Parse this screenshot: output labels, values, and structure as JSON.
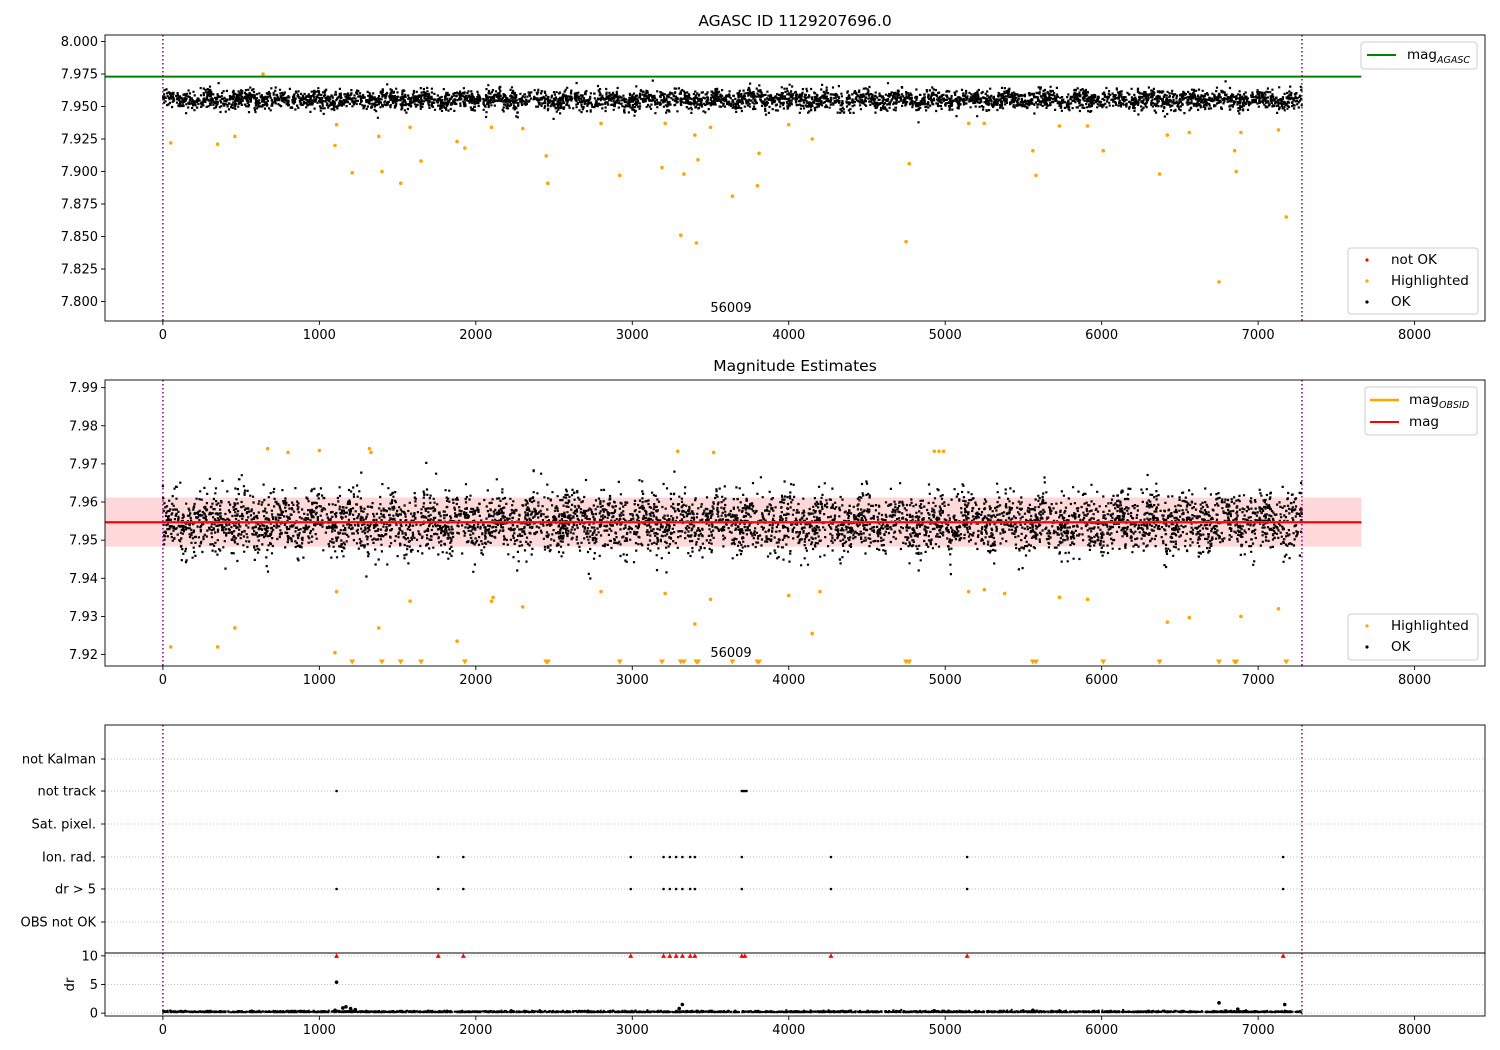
{
  "figure": {
    "title_top": "AGASC ID 1129207696.0",
    "title_mid": "Magnitude Estimates",
    "obsid_label": "56009"
  },
  "colors": {
    "agasc": "#008000",
    "obsid": "#ffa500",
    "mag": "#ff0000",
    "band": "#ffcccc",
    "ok": "#000000",
    "highlighted": "#ffa500",
    "not_ok": "#ff0000",
    "vline": "#800080",
    "grid": "#b0b0b0"
  },
  "chart_data": [
    {
      "type": "scatter",
      "title": "AGASC ID 1129207696.0",
      "xlim": [
        -370,
        8450
      ],
      "ylim": [
        7.785,
        8.005
      ],
      "x_ticks": [
        0,
        1000,
        2000,
        3000,
        4000,
        5000,
        6000,
        7000,
        8000
      ],
      "y_ticks": [
        7.8,
        7.825,
        7.85,
        7.875,
        7.9,
        7.925,
        7.95,
        7.975,
        8.0
      ],
      "vlines": [
        0,
        7280
      ],
      "hlines": [
        {
          "name": "mag_AGASC",
          "y": 7.973,
          "x": [
            -370,
            7660
          ]
        }
      ],
      "annotation": {
        "text": "56009",
        "x": 3640,
        "y": 7.792
      },
      "legend": {
        "upper": [
          {
            "label": "mag",
            "sub": "AGASC"
          }
        ],
        "lower": [
          "not OK",
          "Highlighted",
          "OK"
        ]
      },
      "ok_band": {
        "x": [
          0,
          7280
        ],
        "center": 7.956,
        "spread": 0.006,
        "n_points": 4600
      },
      "highlighted_points": [
        [
          50,
          7.922
        ],
        [
          350,
          7.921
        ],
        [
          460,
          7.927
        ],
        [
          640,
          7.975
        ],
        [
          1100,
          7.92
        ],
        [
          1110,
          7.936
        ],
        [
          1210,
          7.899
        ],
        [
          1380,
          7.927
        ],
        [
          1400,
          7.9
        ],
        [
          1520,
          7.891
        ],
        [
          1580,
          7.934
        ],
        [
          1650,
          7.908
        ],
        [
          1880,
          7.923
        ],
        [
          1930,
          7.918
        ],
        [
          2100,
          7.934
        ],
        [
          2300,
          7.933
        ],
        [
          2450,
          7.912
        ],
        [
          2460,
          7.891
        ],
        [
          2800,
          7.937
        ],
        [
          2920,
          7.897
        ],
        [
          3190,
          7.903
        ],
        [
          3210,
          7.937
        ],
        [
          3310,
          7.851
        ],
        [
          3330,
          7.898
        ],
        [
          3400,
          7.928
        ],
        [
          3410,
          7.845
        ],
        [
          3420,
          7.909
        ],
        [
          3500,
          7.934
        ],
        [
          3640,
          7.881
        ],
        [
          3800,
          7.889
        ],
        [
          3810,
          7.914
        ],
        [
          4000,
          7.936
        ],
        [
          4150,
          7.925
        ],
        [
          4750,
          7.846
        ],
        [
          4770,
          7.906
        ],
        [
          5150,
          7.937
        ],
        [
          5250,
          7.937
        ],
        [
          5560,
          7.916
        ],
        [
          5580,
          7.897
        ],
        [
          5730,
          7.935
        ],
        [
          5910,
          7.935
        ],
        [
          6010,
          7.916
        ],
        [
          6370,
          7.898
        ],
        [
          6420,
          7.928
        ],
        [
          6560,
          7.93
        ],
        [
          6750,
          7.815
        ],
        [
          6850,
          7.916
        ],
        [
          6860,
          7.9
        ],
        [
          6890,
          7.93
        ],
        [
          7130,
          7.932
        ],
        [
          7180,
          7.865
        ]
      ]
    },
    {
      "type": "scatter",
      "title": "Magnitude Estimates",
      "xlim": [
        -370,
        8450
      ],
      "ylim": [
        7.917,
        7.992
      ],
      "x_ticks": [
        0,
        1000,
        2000,
        3000,
        4000,
        5000,
        6000,
        7000,
        8000
      ],
      "y_ticks": [
        7.92,
        7.93,
        7.94,
        7.95,
        7.96,
        7.97,
        7.98,
        7.99
      ],
      "vlines": [
        0,
        7280
      ],
      "hlines": [
        {
          "name": "mag_OBSID",
          "y": 7.9547,
          "x": [
            -370,
            7660
          ]
        },
        {
          "name": "mag",
          "y": 7.9547,
          "x": [
            -370,
            7660
          ]
        }
      ],
      "band": {
        "lo": 7.9483,
        "hi": 7.9612,
        "x": [
          -370,
          7660
        ]
      },
      "annotation": {
        "text": "56009",
        "x": 3640,
        "y": 7.9195
      },
      "legend": {
        "upper": [
          {
            "label": "mag",
            "sub": "OBSID"
          },
          {
            "label": "mag",
            "sub": ""
          }
        ],
        "lower": [
          "Highlighted",
          "OK"
        ]
      },
      "ok_band": {
        "x": [
          0,
          7280
        ],
        "center": 7.955,
        "spread": 0.0065,
        "n_points": 5200
      },
      "highlighted_points": [
        [
          50,
          7.922
        ],
        [
          350,
          7.922
        ],
        [
          460,
          7.927
        ],
        [
          670,
          7.974
        ],
        [
          800,
          7.973
        ],
        [
          1000,
          7.9735
        ],
        [
          1100,
          7.9205
        ],
        [
          1110,
          7.9365
        ],
        [
          1320,
          7.974
        ],
        [
          1330,
          7.973
        ],
        [
          1380,
          7.927
        ],
        [
          1580,
          7.934
        ],
        [
          1880,
          7.9235
        ],
        [
          2100,
          7.934
        ],
        [
          2110,
          7.935
        ],
        [
          2300,
          7.9325
        ],
        [
          2800,
          7.9365
        ],
        [
          3210,
          7.936
        ],
        [
          3290,
          7.9733
        ],
        [
          3400,
          7.928
        ],
        [
          3500,
          7.9345
        ],
        [
          3520,
          7.973
        ],
        [
          4000,
          7.9355
        ],
        [
          4150,
          7.9255
        ],
        [
          4200,
          7.9365
        ],
        [
          4930,
          7.9733
        ],
        [
          4960,
          7.9733
        ],
        [
          4990,
          7.9733
        ],
        [
          5150,
          7.9365
        ],
        [
          5250,
          7.937
        ],
        [
          5380,
          7.936
        ],
        [
          5730,
          7.935
        ],
        [
          5910,
          7.9345
        ],
        [
          6420,
          7.9285
        ],
        [
          6560,
          7.9297
        ],
        [
          6890,
          7.93
        ],
        [
          7130,
          7.932
        ]
      ],
      "clipped_low_markers_x": [
        1210,
        1400,
        1520,
        1650,
        1930,
        2450,
        2460,
        2920,
        3190,
        3310,
        3330,
        3410,
        3420,
        3640,
        3800,
        3810,
        4750,
        4770,
        5560,
        5580,
        6010,
        6370,
        6750,
        6850,
        6860,
        7180
      ]
    },
    {
      "type": "scatter",
      "title": "",
      "xlim": [
        -370,
        8450
      ],
      "x_ticks": [
        0,
        1000,
        2000,
        3000,
        4000,
        5000,
        6000,
        7000,
        8000
      ],
      "vlines": [
        0,
        7280
      ],
      "categories": [
        "not Kalman",
        "not track",
        "Sat. pixel.",
        "Ion. rad.",
        "dr > 5",
        "OBS not OK"
      ],
      "flags": {
        "not track": [
          1110,
          3700,
          3710,
          3720,
          3730
        ],
        "Ion. rad.": [
          1760,
          1920,
          2990,
          3200,
          3240,
          3280,
          3320,
          3370,
          3400,
          3700,
          4270,
          5140,
          7160
        ],
        "dr > 5": [
          1110,
          1760,
          1920,
          2990,
          3200,
          3240,
          3280,
          3320,
          3370,
          3400,
          3700,
          4270,
          5140,
          7160
        ]
      },
      "dr": {
        "ylabel": "dr",
        "ylim": [
          -0.5,
          10.5
        ],
        "y_ticks": [
          0,
          5,
          10
        ],
        "baseline": 0.15,
        "spikes": [
          [
            1100,
            0.5
          ],
          [
            1150,
            0.9
          ],
          [
            1170,
            1.1
          ],
          [
            1200,
            0.8
          ],
          [
            1230,
            0.6
          ],
          [
            3320,
            1.5
          ],
          [
            3300,
            0.8
          ],
          [
            4930,
            0.4
          ],
          [
            5560,
            0.5
          ],
          [
            6750,
            1.8
          ],
          [
            6870,
            0.7
          ],
          [
            7170,
            1.5
          ],
          [
            1110,
            5.4
          ]
        ],
        "capped_markers_x": [
          1110,
          1760,
          1920,
          2990,
          3200,
          3240,
          3280,
          3320,
          3370,
          3400,
          3700,
          3720,
          4270,
          5140,
          7160
        ]
      }
    }
  ]
}
